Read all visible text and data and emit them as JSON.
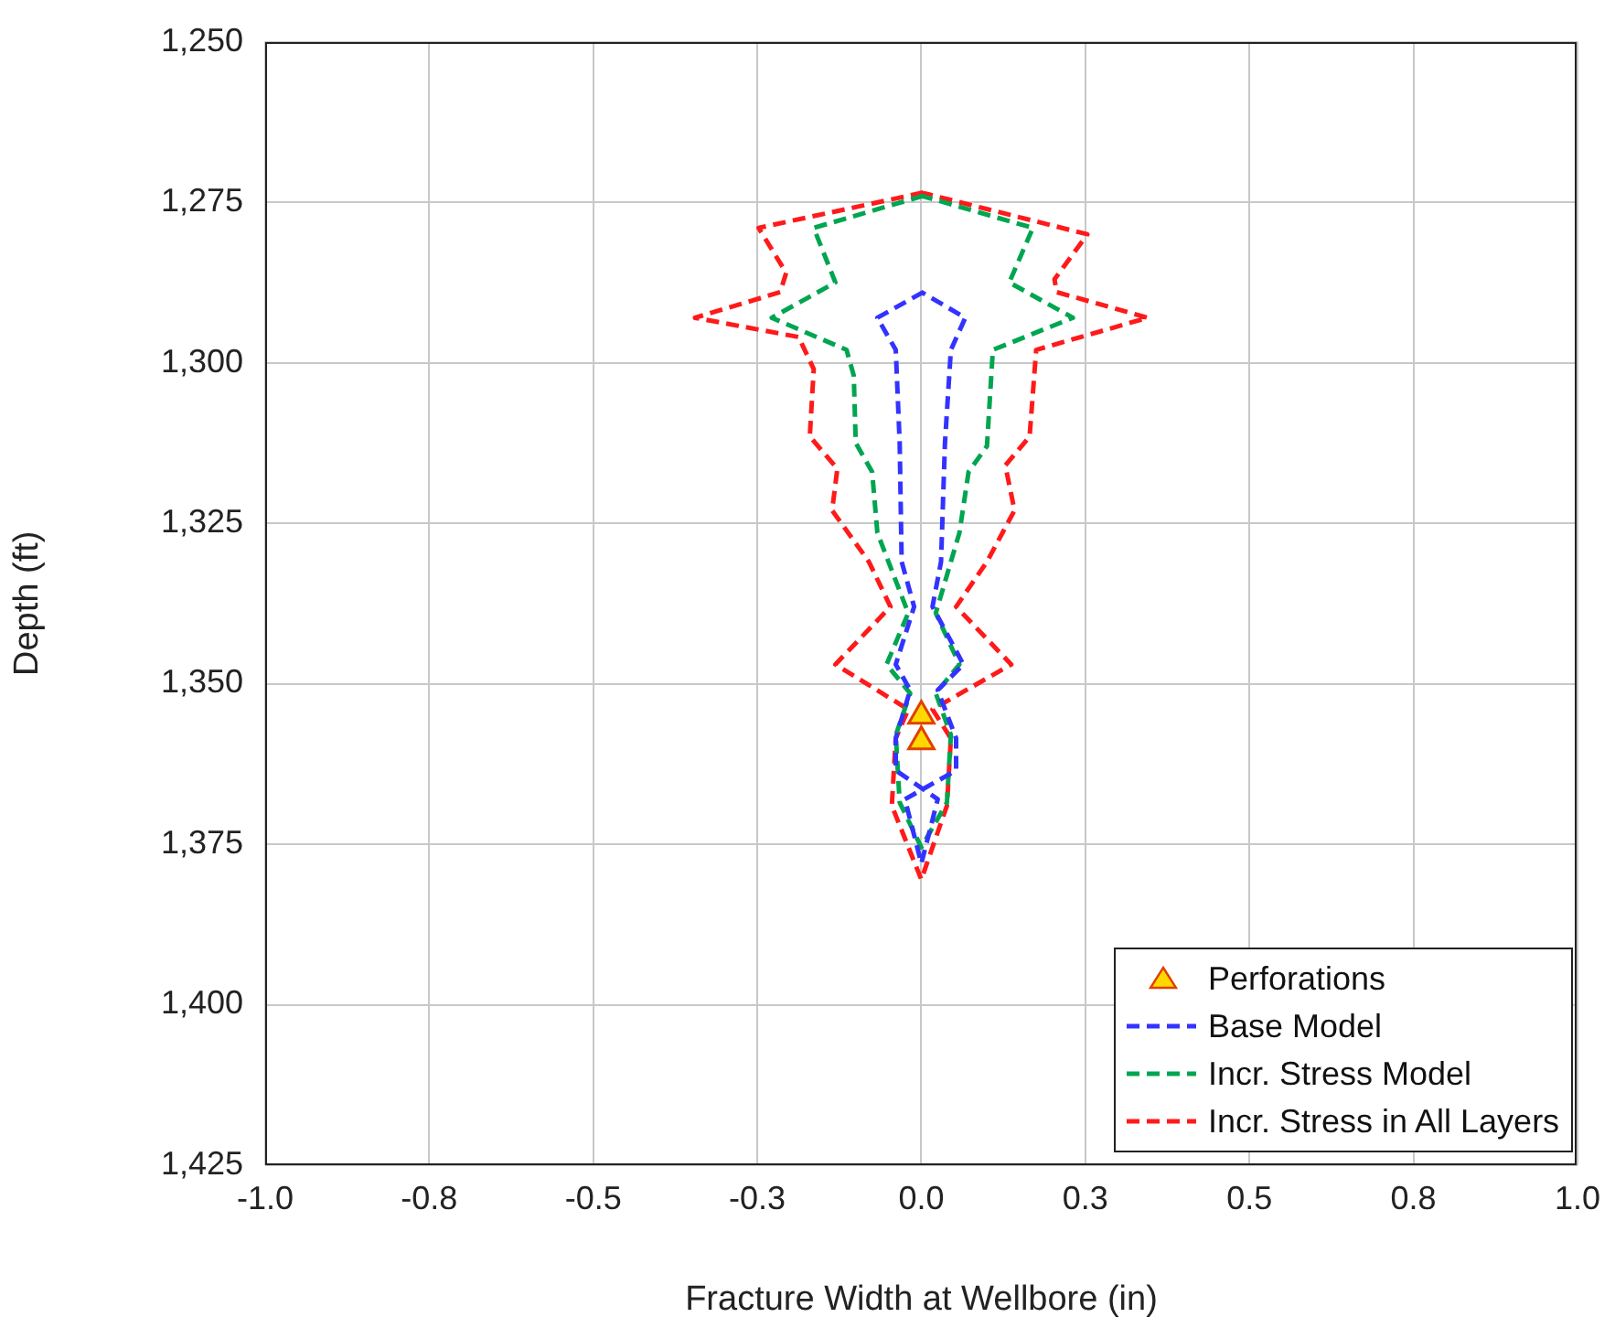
{
  "chart_data": {
    "type": "line",
    "xlabel": "Fracture Width at Wellbore (in)",
    "ylabel": "Depth (ft)",
    "xlim": [
      -1,
      1
    ],
    "ylim": [
      1425,
      1250
    ],
    "xticks": [
      {
        "value": -1,
        "label": "-1.0"
      },
      {
        "value": -0.75,
        "label": "-0.8"
      },
      {
        "value": -0.5,
        "label": "-0.5"
      },
      {
        "value": -0.25,
        "label": "-0.3"
      },
      {
        "value": 0,
        "label": "0.0"
      },
      {
        "value": 0.25,
        "label": "0.3"
      },
      {
        "value": 0.5,
        "label": "0.5"
      },
      {
        "value": 0.75,
        "label": "0.8"
      },
      {
        "value": 1,
        "label": "1.0"
      }
    ],
    "yticks": [
      {
        "value": 1250,
        "label": "1,250"
      },
      {
        "value": 1275,
        "label": "1,275"
      },
      {
        "value": 1300,
        "label": "1,300"
      },
      {
        "value": 1325,
        "label": "1,325"
      },
      {
        "value": 1350,
        "label": "1,350"
      },
      {
        "value": 1375,
        "label": "1,375"
      },
      {
        "value": 1400,
        "label": "1,400"
      },
      {
        "value": 1425,
        "label": "1,425"
      }
    ],
    "grid": true,
    "legend": "bottom right",
    "line_style": "dashed",
    "series": [
      {
        "type": "scatter",
        "marker": "triangle",
        "name": "Perforations",
        "color": "#ffd800",
        "x": [
          0,
          0
        ],
        "values": [
          1355,
          1359
        ]
      },
      {
        "name": "Base Model",
        "color": "#3333ff",
        "x": [
          0.003,
          -0.067,
          -0.039,
          -0.033,
          -0.03,
          -0.011,
          -0.039,
          -0.017,
          -0.039,
          -0.039,
          0.025,
          0,
          -0.025,
          0.053,
          0.053,
          0.025,
          0.064,
          0.017,
          0.03,
          0.036,
          0.045,
          0.067,
          0
        ],
        "values": [
          1289,
          1293,
          1298,
          1312.5,
          1331,
          1338,
          1347,
          1351,
          1358.5,
          1363.5,
          1368,
          1378,
          1368,
          1363.5,
          1358.5,
          1351,
          1347,
          1338,
          1331,
          1312.5,
          1298,
          1293,
          1289
        ]
      },
      {
        "name": "Incr. Stress Model",
        "color": "#00a550",
        "x": [
          0.003,
          -0.164,
          -0.131,
          -0.228,
          -0.114,
          -0.103,
          -0.1,
          -0.075,
          -0.067,
          -0.02,
          -0.053,
          -0.017,
          -0.039,
          -0.033,
          0,
          0.039,
          0.045,
          0.022,
          0.058,
          0.022,
          0.058,
          0.072,
          0.1,
          0.109,
          0.231,
          0.134,
          0.17,
          0
        ],
        "values": [
          1274,
          1279,
          1287.5,
          1293,
          1298,
          1302,
          1312.5,
          1317,
          1326.5,
          1339,
          1347,
          1351.5,
          1358,
          1368.5,
          1375.5,
          1368.5,
          1358,
          1351.5,
          1347,
          1339,
          1326.5,
          1317,
          1313,
          1298,
          1293,
          1287.5,
          1279,
          1274
        ]
      },
      {
        "name": "Incr. Stress in All Layers",
        "color": "#ff1a1a",
        "x": [
          0.003,
          -0.248,
          -0.206,
          -0.215,
          -0.345,
          -0.187,
          -0.164,
          -0.17,
          -0.128,
          -0.136,
          -0.08,
          -0.047,
          -0.131,
          -0.02,
          -0.039,
          -0.045,
          0,
          0.039,
          0.045,
          0.017,
          0.137,
          0.053,
          0.1,
          0.142,
          0.128,
          0.165,
          0.175,
          0.345,
          0.206,
          0.203,
          0.253,
          0
        ],
        "values": [
          1273.5,
          1279,
          1286,
          1289,
          1293,
          1296,
          1301,
          1311.5,
          1316.5,
          1323,
          1331,
          1338,
          1347,
          1354,
          1358.5,
          1369,
          1380.5,
          1369,
          1358.5,
          1354,
          1347,
          1338,
          1331,
          1323,
          1316,
          1311.5,
          1298,
          1293,
          1289,
          1287,
          1280,
          1273.5
        ]
      }
    ]
  }
}
